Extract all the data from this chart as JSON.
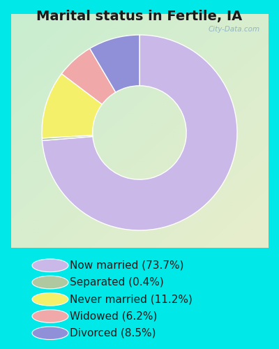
{
  "title": "Marital status in Fertile, IA",
  "slices": [
    73.7,
    0.4,
    11.2,
    6.2,
    8.5
  ],
  "labels": [
    "Now married (73.7%)",
    "Separated (0.4%)",
    "Never married (11.2%)",
    "Widowed (6.2%)",
    "Divorced (8.5%)"
  ],
  "colors": [
    "#c9b8e8",
    "#b0c8a0",
    "#f5f06a",
    "#f0a8a8",
    "#9090d8"
  ],
  "bg_color": "#00e8e8",
  "chart_bg_tl": "#c8edd0",
  "chart_bg_tr": "#d0e8e0",
  "chart_bg_bl": "#d8edcc",
  "chart_bg_br": "#e8edcc",
  "title_fontsize": 14,
  "watermark": "City-Data.com",
  "start_angle": 90,
  "donut_width": 0.52,
  "legend_fontsize": 11
}
